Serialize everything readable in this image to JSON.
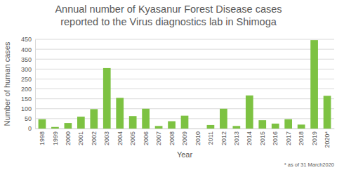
{
  "chart_data": {
    "type": "bar",
    "title": "Annual number of Kyasanur Forest Disease cases\nreported to the Virus diagnostics lab in Shimoga",
    "x_label": "Year",
    "y_label": "Number of human cases",
    "annotations": [
      "* as of 31 March2020"
    ],
    "categories": [
      "1998",
      "1999",
      "2000",
      "2001",
      "2002",
      "2003",
      "2004",
      "2005",
      "2006",
      "2007",
      "2008",
      "2009",
      "2010",
      "2011",
      "2012",
      "2013",
      "2014",
      "2015",
      "2016",
      "2017",
      "2018",
      "2019",
      "2020*"
    ],
    "values": [
      47,
      8,
      28,
      60,
      98,
      305,
      155,
      63,
      100,
      13,
      37,
      65,
      0,
      18,
      100,
      13,
      167,
      42,
      25,
      47,
      20,
      446,
      165
    ],
    "color": "#7dc242",
    "ylim": [
      0,
      450
    ],
    "yticks": [
      0,
      50,
      100,
      150,
      200,
      250,
      300,
      350,
      400,
      450
    ],
    "grid": true
  }
}
